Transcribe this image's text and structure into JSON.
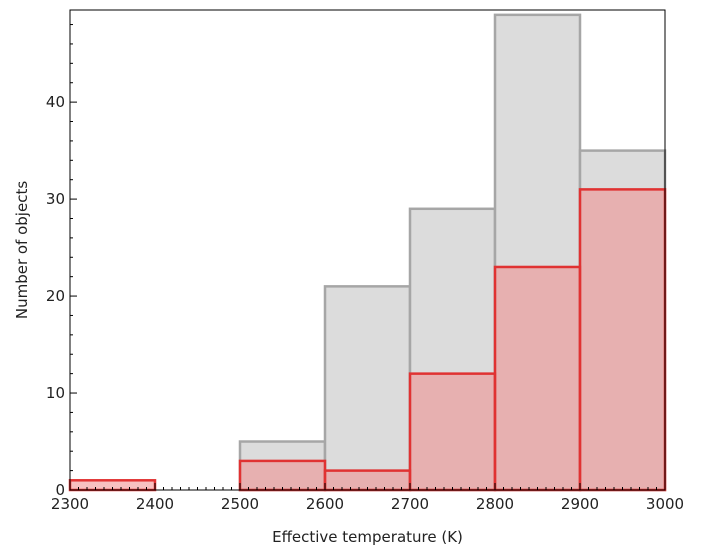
{
  "chart_data": {
    "type": "bar",
    "xlabel": "Effective temperature (K)",
    "ylabel": "Number of objects",
    "xlim": [
      2300,
      3000
    ],
    "ylim": [
      0,
      49.5
    ],
    "x_ticks": [
      "2300",
      "2400",
      "2500",
      "2600",
      "2700",
      "2800",
      "2900",
      "3000"
    ],
    "y_ticks": [
      "0",
      "10",
      "20",
      "30",
      "40"
    ],
    "bin_edges": [
      2300,
      2400,
      2500,
      2600,
      2700,
      2800,
      2900,
      3000
    ],
    "grid": false,
    "series": [
      {
        "values": [
          0,
          0,
          5,
          21,
          29,
          49,
          35
        ],
        "fill": "#dcdcdc",
        "edge": "#a6a6a6"
      },
      {
        "values": [
          1,
          0,
          3,
          2,
          12,
          23,
          31
        ],
        "fill": "#f08c8c",
        "fill_opacity": 0.55,
        "edge": "#e03232"
      }
    ]
  }
}
